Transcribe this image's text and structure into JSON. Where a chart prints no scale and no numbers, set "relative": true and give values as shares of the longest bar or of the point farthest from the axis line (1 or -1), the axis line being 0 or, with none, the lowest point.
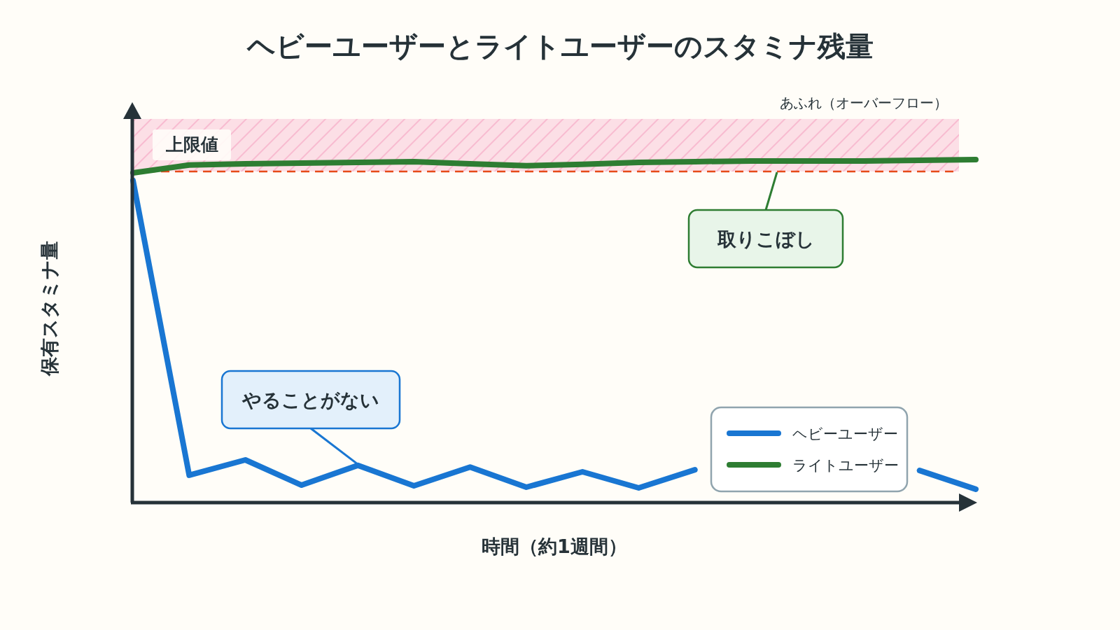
{
  "chart_data": {
    "type": "line",
    "title": "ヘビーユーザーとライトユーザーのスタミナ残量",
    "xlabel": "時間（約1週間）",
    "ylabel": "保有スタミナ量",
    "relative": true,
    "legend": "bottom right",
    "categories": [
      null,
      null,
      null,
      null,
      null,
      null,
      null,
      null,
      null,
      null,
      null,
      null,
      null,
      null,
      null,
      null
    ],
    "series": [
      {
        "name": "ヘビーユーザー",
        "color": "#1976d2",
        "values": [
          0.939,
          0.076,
          0.121,
          0.047,
          0.105,
          0.045,
          0.1,
          0.041,
          0.086,
          0.039,
          0.092,
          null,
          null,
          null,
          0.09,
          0.035
        ]
      },
      {
        "name": "ライトユーザー",
        "color": "#2e7d32",
        "values": [
          0.961,
          0.984,
          0.988,
          0.99,
          0.992,
          0.994,
          0.988,
          0.982,
          0.986,
          0.992,
          0.994,
          0.996,
          0.996,
          0.996,
          0.998,
          1.0
        ]
      }
    ],
    "ref_lines": [
      {
        "axis": "y",
        "value": 0.965,
        "label": "上限値",
        "color": "#e64a19",
        "line_style": "dashed"
      }
    ],
    "bands": [
      {
        "axis": "y",
        "from": 0.965,
        "to": 1.119,
        "label": "あふれ（オーバーフロー）",
        "color": "#f8bbd0"
      }
    ],
    "annotations": [
      "やることがない",
      "取りこぼし"
    ]
  }
}
